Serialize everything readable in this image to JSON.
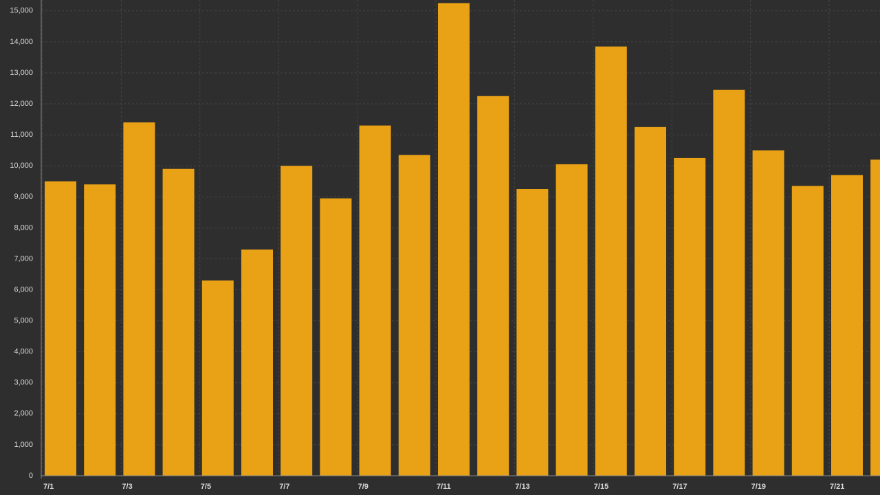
{
  "chart_data": {
    "type": "bar",
    "categories": [
      "7/1",
      null,
      "7/3",
      null,
      "7/5",
      null,
      "7/7",
      null,
      "7/9",
      null,
      "7/11",
      null,
      "7/13",
      null,
      "7/15",
      null,
      "7/17",
      null,
      "7/19",
      null,
      "7/21",
      null
    ],
    "values": [
      9500,
      9400,
      11400,
      9900,
      6300,
      7300,
      10000,
      8950,
      11300,
      10350,
      15250,
      12250,
      9250,
      10050,
      13850,
      11250,
      10250,
      12450,
      10500,
      9350,
      9700,
      10200
    ],
    "color": "#e9a215",
    "ylim": [
      0,
      15350
    ],
    "yticks": [
      0,
      {
        "value": 1000,
        "label": "1,000"
      },
      {
        "value": 2000,
        "label": "2,000"
      },
      {
        "value": 3000,
        "label": "3,000"
      },
      {
        "value": 4000,
        "label": "4,000"
      },
      {
        "value": 5000,
        "label": "5,000"
      },
      {
        "value": 6000,
        "label": "6,000"
      },
      {
        "value": 7000,
        "label": "7,000"
      },
      {
        "value": 8000,
        "label": "8,000"
      },
      {
        "value": 9000,
        "label": "9,000"
      },
      {
        "value": 10000,
        "label": "10,000"
      },
      {
        "value": 11000,
        "label": "11,000"
      },
      {
        "value": 12000,
        "label": "12,000"
      },
      {
        "value": 13000,
        "label": "13,000"
      },
      {
        "value": 14000,
        "label": "14,000"
      },
      {
        "value": 15000,
        "label": "15,000"
      }
    ],
    "grid": true
  }
}
